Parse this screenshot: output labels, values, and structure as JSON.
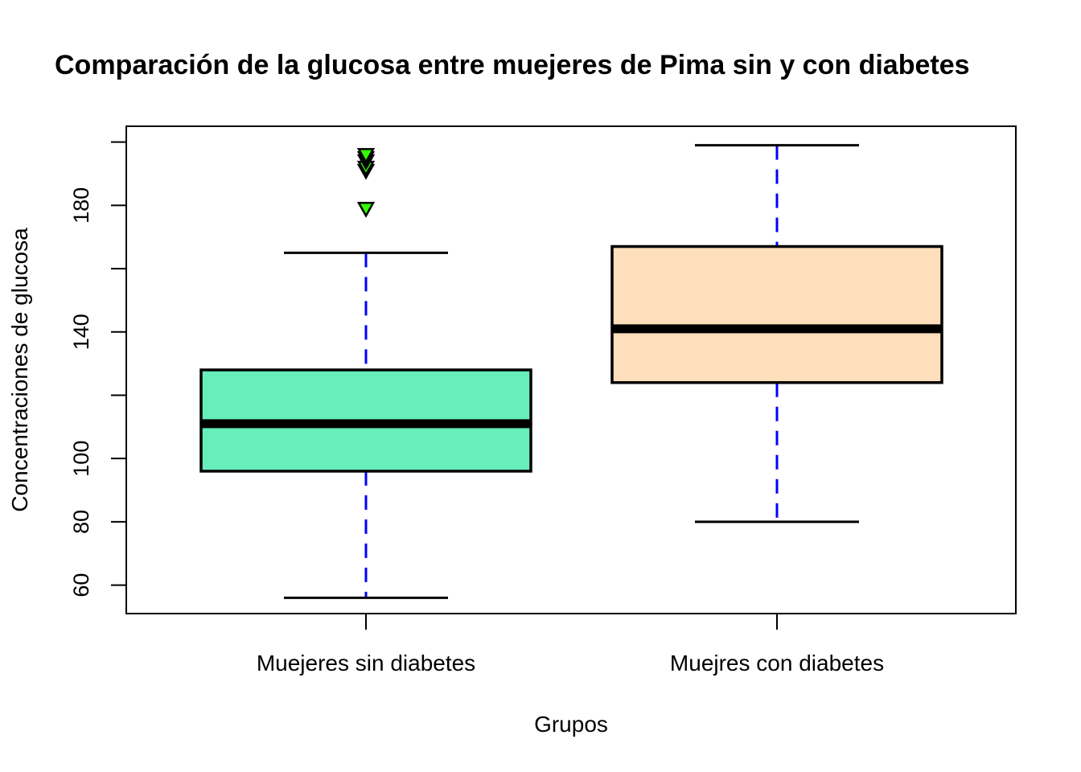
{
  "chart_data": {
    "type": "boxplot",
    "title": "Comparación de la glucosa entre muejeres de Pima sin y con diabetes",
    "xlabel": "Grupos",
    "ylabel": "Concentraciones de glucosa",
    "ylim": [
      51,
      205
    ],
    "yticks": [
      60,
      80,
      100,
      120,
      140,
      160,
      180,
      200
    ],
    "ytick_labels_shown": [
      60,
      80,
      100,
      140,
      180
    ],
    "categories": [
      "Muejeres sin diabetes",
      "Muejres con diabetes"
    ],
    "groups": [
      {
        "category": "Muejeres sin diabetes",
        "whisker_low": 56,
        "q1": 96,
        "median": 111,
        "q3": 128,
        "whisker_high": 165,
        "outliers": [
          179,
          191,
          192,
          194,
          195,
          196
        ],
        "fill": "#66EEBB"
      },
      {
        "category": "Muejres con diabetes",
        "whisker_low": 80,
        "q1": 124,
        "median": 141,
        "q3": 167,
        "whisker_high": 199,
        "outliers": [],
        "fill": "#FFDEBB"
      }
    ],
    "whisker_line_color": "#0000FF",
    "whisker_line_style": "dashed",
    "outlier_color": "#33FF00",
    "outlier_shape": "down-triangle"
  }
}
